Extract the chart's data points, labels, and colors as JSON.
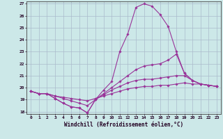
{
  "xlabel": "Windchill (Refroidissement éolien,°C)",
  "bg_color": "#cce8e8",
  "grid_color": "#aabbcc",
  "line_color": "#993399",
  "xlim": [
    -0.5,
    23.5
  ],
  "ylim": [
    17.8,
    27.2
  ],
  "yticks": [
    18,
    19,
    20,
    21,
    22,
    23,
    24,
    25,
    26,
    27
  ],
  "xticks": [
    0,
    1,
    2,
    3,
    4,
    5,
    6,
    7,
    8,
    9,
    10,
    11,
    12,
    13,
    14,
    15,
    16,
    17,
    18,
    19,
    20,
    21,
    22,
    23
  ],
  "series": [
    {
      "x": [
        0,
        1,
        2,
        3,
        4,
        5,
        6,
        7,
        8,
        9,
        10,
        11,
        12,
        13,
        14,
        15,
        16,
        17,
        18,
        19,
        20,
        21,
        22,
        23
      ],
      "y": [
        19.7,
        19.5,
        19.5,
        19.1,
        18.7,
        18.4,
        18.3,
        17.9,
        19.0,
        19.8,
        20.5,
        23.0,
        24.5,
        26.7,
        27.0,
        26.8,
        26.1,
        25.1,
        23.0,
        21.2,
        20.6,
        20.3,
        20.2,
        20.1
      ]
    },
    {
      "x": [
        0,
        1,
        2,
        3,
        4,
        5,
        6,
        7,
        8,
        9,
        10,
        11,
        12,
        13,
        14,
        15,
        16,
        17,
        18,
        19,
        20,
        21,
        22,
        23
      ],
      "y": [
        19.7,
        19.5,
        19.5,
        19.1,
        18.7,
        18.4,
        18.3,
        17.9,
        19.0,
        19.5,
        20.0,
        20.5,
        21.0,
        21.5,
        21.8,
        21.9,
        22.0,
        22.3,
        22.8,
        21.2,
        20.6,
        20.3,
        20.2,
        20.1
      ]
    },
    {
      "x": [
        0,
        1,
        2,
        3,
        4,
        5,
        6,
        7,
        8,
        9,
        10,
        11,
        12,
        13,
        14,
        15,
        16,
        17,
        18,
        19,
        20,
        21,
        22,
        23
      ],
      "y": [
        19.7,
        19.5,
        19.5,
        19.3,
        19.1,
        18.9,
        18.7,
        18.5,
        19.0,
        19.4,
        19.8,
        20.1,
        20.4,
        20.6,
        20.7,
        20.7,
        20.8,
        20.9,
        21.0,
        21.0,
        20.6,
        20.3,
        20.2,
        20.1
      ]
    },
    {
      "x": [
        0,
        1,
        2,
        3,
        4,
        5,
        6,
        7,
        8,
        9,
        10,
        11,
        12,
        13,
        14,
        15,
        16,
        17,
        18,
        19,
        20,
        21,
        22,
        23
      ],
      "y": [
        19.7,
        19.5,
        19.5,
        19.3,
        19.2,
        19.1,
        19.0,
        18.9,
        19.1,
        19.3,
        19.5,
        19.7,
        19.9,
        20.0,
        20.1,
        20.1,
        20.2,
        20.2,
        20.3,
        20.4,
        20.3,
        20.3,
        20.2,
        20.1
      ]
    }
  ]
}
